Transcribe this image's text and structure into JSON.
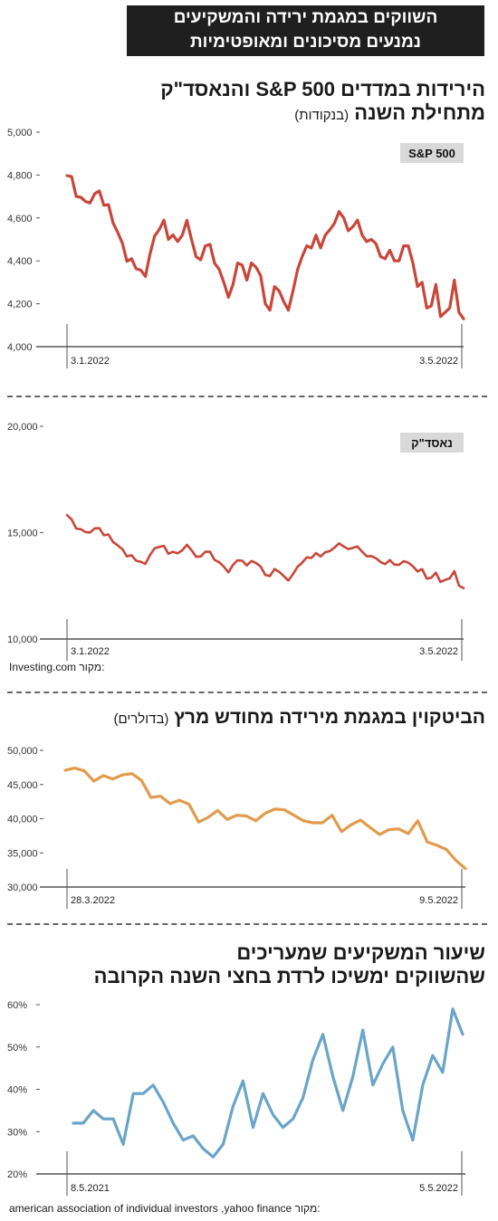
{
  "headline": {
    "line1": "השווקים במגמת ירידה והמשקיעים",
    "line2": "נמנעים מסיכונים ומאופטימיות"
  },
  "section1": {
    "title_line1": "הירידות במדדים S&P 500 והנאסד\"ק",
    "title_line2": "מתחילת השנה",
    "unit": "(בנקודות)",
    "source_label": "מקור:",
    "source": "Investing.com"
  },
  "section2": {
    "title": "הביטקוין במגמת מירידה מחודש מרץ",
    "unit": "(בדולרים)"
  },
  "section3": {
    "title_line1": "שיעור המשקיעים שמעריכים",
    "title_line2": "שהשווקים ימשיכו לרדת בחצי השנה הקרובה",
    "source_label": "מקור:",
    "source": "american association of individual investors ,yahoo finance"
  },
  "colors": {
    "sp500": "#c8473a",
    "nasdaq": "#c8473a",
    "bitcoin": "#e19b4c",
    "investors": "#6aa4c8",
    "label_bg": "#d9d9d9"
  },
  "chart_data": [
    {
      "type": "line",
      "label": "S&P 500",
      "x_start": "3.1.2022",
      "x_end": "3.5.2022",
      "yticks": [
        "4,000",
        "4,200",
        "4,400",
        "4,600",
        "4,800",
        "5,000"
      ],
      "ylim": [
        4000,
        5000
      ],
      "values": [
        4797,
        4793,
        4700,
        4696,
        4677,
        4670,
        4713,
        4726,
        4659,
        4662,
        4577,
        4533,
        4483,
        4398,
        4410,
        4363,
        4357,
        4327,
        4433,
        4516,
        4546,
        4590,
        4500,
        4521,
        4490,
        4520,
        4589,
        4500,
        4419,
        4405,
        4470,
        4477,
        4389,
        4360,
        4300,
        4230,
        4290,
        4390,
        4380,
        4310,
        4390,
        4370,
        4330,
        4200,
        4170,
        4280,
        4260,
        4210,
        4170,
        4260,
        4360,
        4420,
        4470,
        4460,
        4520,
        4460,
        4520,
        4545,
        4575,
        4630,
        4600,
        4540,
        4560,
        4590,
        4520,
        4490,
        4500,
        4480,
        4420,
        4410,
        4450,
        4400,
        4400,
        4470,
        4470,
        4390,
        4280,
        4300,
        4180,
        4190,
        4290,
        4140,
        4160,
        4180,
        4310,
        4160,
        4130
      ]
    },
    {
      "type": "line",
      "label": "נאסד\"ק",
      "x_start": "3.1.2022",
      "x_end": "3.5.2022",
      "yticks": [
        "10,000",
        "15,000",
        "20,000"
      ],
      "ylim": [
        10000,
        20000
      ],
      "values": [
        15830,
        15620,
        15190,
        15160,
        15030,
        15010,
        15200,
        15210,
        14880,
        14910,
        14560,
        14400,
        14230,
        13880,
        13940,
        13680,
        13630,
        13530,
        13950,
        14270,
        14330,
        14380,
        14010,
        14100,
        14030,
        14170,
        14430,
        14180,
        13870,
        13880,
        14100,
        14100,
        13720,
        13610,
        13400,
        13130,
        13480,
        13700,
        13680,
        13460,
        13670,
        13570,
        13410,
        13010,
        12960,
        13290,
        13160,
        12960,
        12750,
        13050,
        13400,
        13590,
        13840,
        13810,
        14040,
        13880,
        14080,
        14130,
        14300,
        14500,
        14350,
        14230,
        14290,
        14350,
        14100,
        13890,
        13900,
        13800,
        13620,
        13520,
        13710,
        13500,
        13490,
        13660,
        13590,
        13420,
        13180,
        13290,
        12840,
        12880,
        13120,
        12680,
        12780,
        12850,
        13190,
        12510,
        12390
      ]
    },
    {
      "type": "line",
      "label": "Bitcoin",
      "x_start": "28.3.2022",
      "x_end": "9.5.2022",
      "yticks": [
        "30,000",
        "35,000",
        "40,000",
        "45,000",
        "50,000"
      ],
      "ylim": [
        30000,
        50000
      ],
      "values": [
        47100,
        47400,
        47000,
        45500,
        46300,
        45800,
        46400,
        46600,
        45600,
        43100,
        43300,
        42200,
        42700,
        42100,
        39500,
        40200,
        41200,
        39900,
        40500,
        40400,
        39700,
        40800,
        41400,
        41300,
        40500,
        39700,
        39400,
        39400,
        40500,
        38100,
        39100,
        39800,
        38700,
        37700,
        38400,
        38500,
        37800,
        39700,
        36600,
        36100,
        35500,
        33900,
        32700
      ]
    },
    {
      "type": "line",
      "label": "investors expecting further decline",
      "x_start": "8.5.2021",
      "x_end": "5.5.2022",
      "yticks": [
        "20%",
        "30%",
        "40%",
        "50%",
        "60%"
      ],
      "ylim": [
        20,
        60
      ],
      "values": [
        32,
        32,
        35,
        33,
        33,
        27,
        39,
        39,
        41,
        37,
        32,
        28,
        29,
        26,
        24,
        27,
        36,
        42,
        31,
        39,
        34,
        31,
        33,
        38,
        47,
        53,
        43,
        35,
        43,
        54,
        41,
        46,
        50,
        35,
        28,
        41,
        48,
        44,
        59,
        53
      ]
    }
  ]
}
